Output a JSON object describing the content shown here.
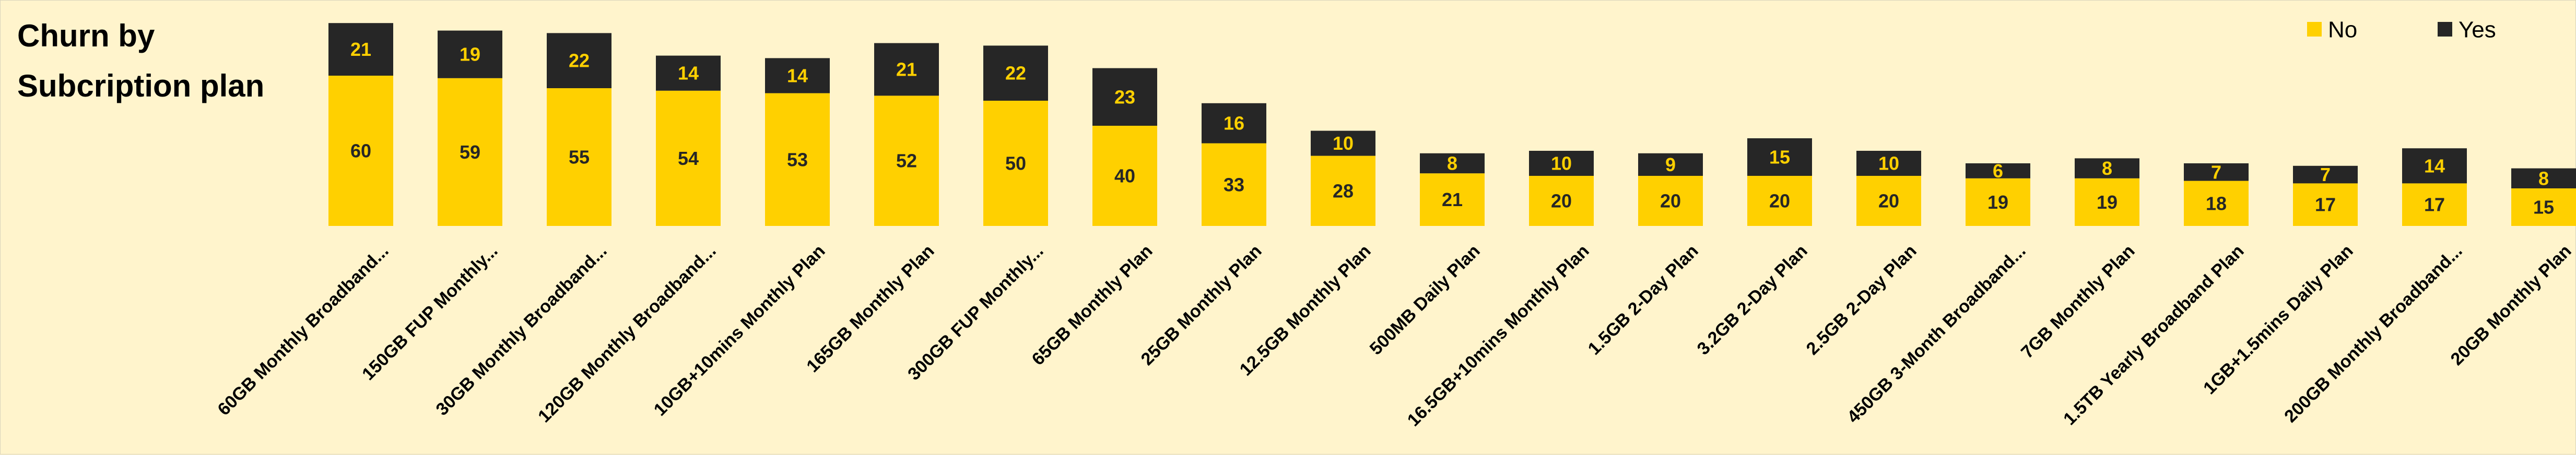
{
  "chart_data": {
    "type": "bar",
    "stacked": true,
    "title": "Churn by Subcription plan",
    "xlabel": "",
    "ylabel": "",
    "legend": {
      "placement": "top-right"
    },
    "grid": false,
    "categories": [
      "60GB Monthly Broadband...",
      "150GB FUP Monthly...",
      "30GB Monthly Broadband...",
      "120GB Monthly Broadband...",
      "10GB+10mins Monthly Plan",
      "165GB Monthly Plan",
      "300GB FUP Monthly...",
      "65GB Monthly Plan",
      "25GB Monthly Plan",
      "12.5GB Monthly Plan",
      "500MB Daily Plan",
      "16.5GB+10mins Monthly Plan",
      "1.5GB 2-Day Plan",
      "3.2GB 2-Day Plan",
      "2.5GB 2-Day Plan",
      "450GB 3-Month Broadband...",
      "7GB Monthly Plan",
      "1.5TB Yearly Broadband Plan",
      "1GB+1.5mins Daily Plan",
      "200GB Monthly Broadband...",
      "20GB Monthly Plan"
    ],
    "series": [
      {
        "name": "No",
        "color": "#ffd000",
        "label_color": "#262626",
        "values": [
          60,
          59,
          55,
          54,
          53,
          52,
          50,
          40,
          33,
          28,
          21,
          20,
          20,
          20,
          20,
          19,
          19,
          18,
          17,
          17,
          15
        ]
      },
      {
        "name": "Yes",
        "color": "#262626",
        "label_color": "#ffd000",
        "values": [
          21,
          19,
          22,
          14,
          14,
          21,
          22,
          23,
          16,
          10,
          8,
          10,
          9,
          15,
          10,
          6,
          8,
          7,
          7,
          14,
          8
        ]
      }
    ],
    "ylim": [
      0,
      81
    ]
  }
}
